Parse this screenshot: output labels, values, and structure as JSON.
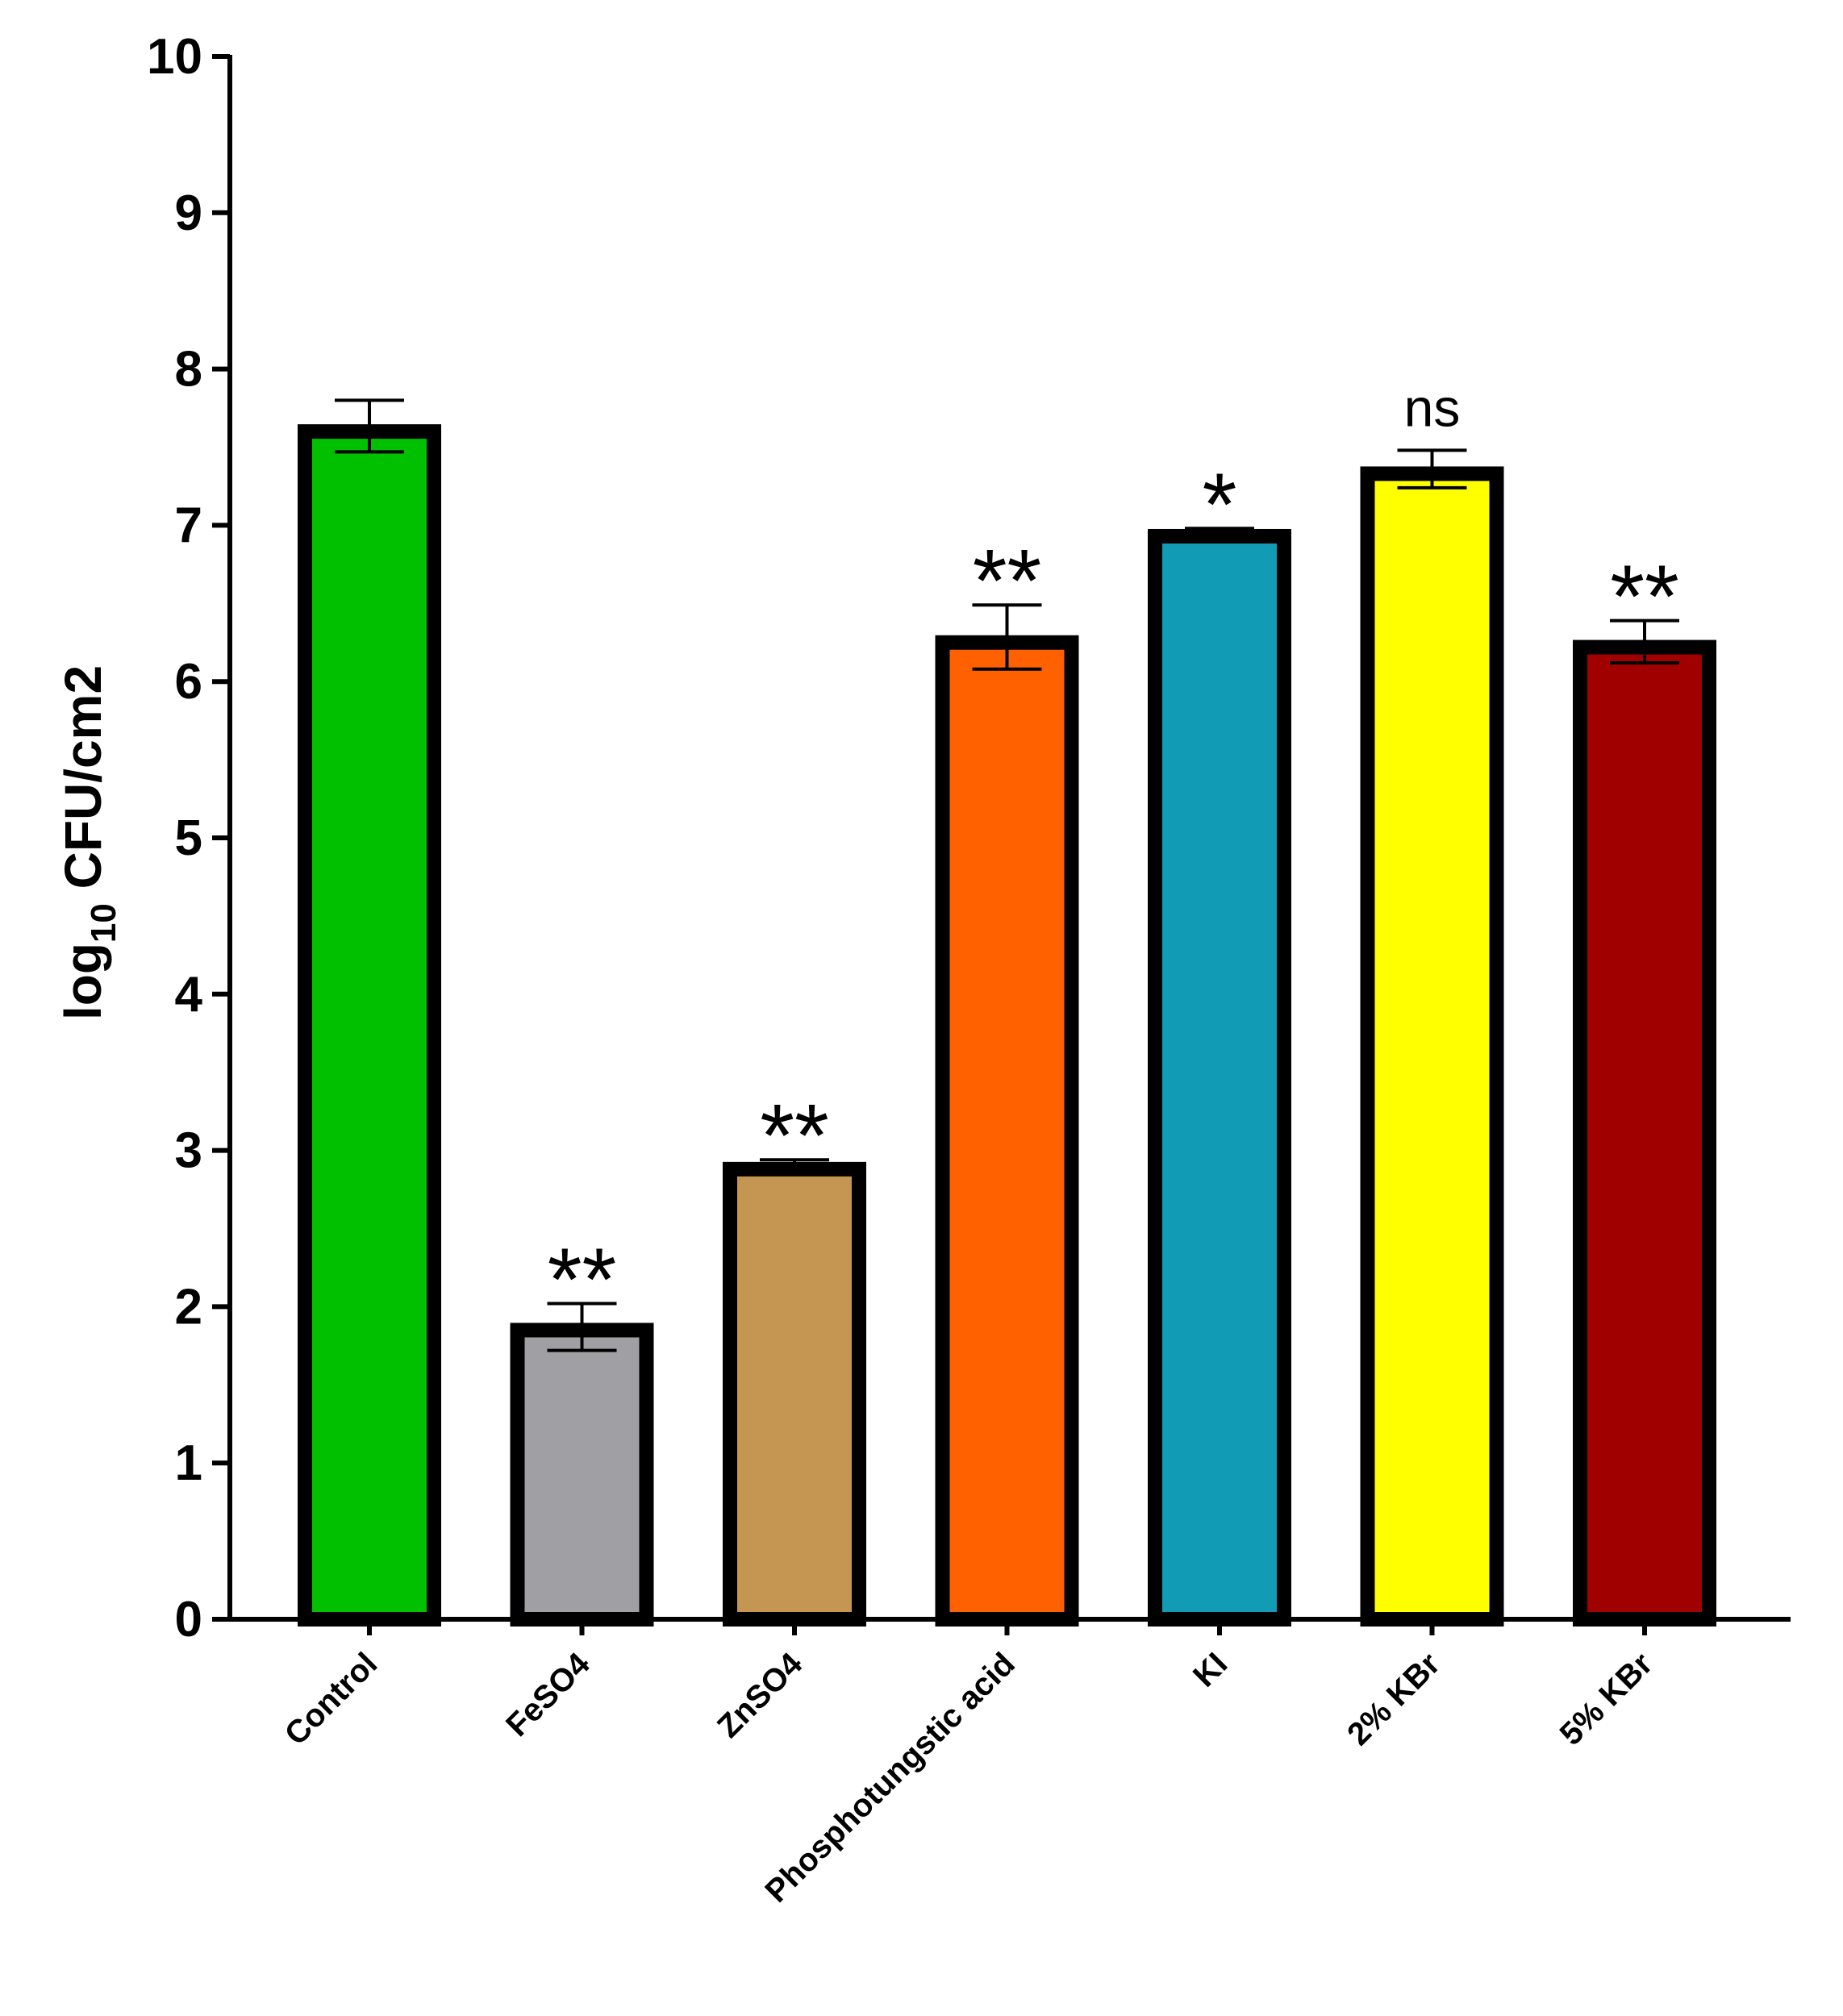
{
  "chart_data": {
    "type": "bar",
    "title": "",
    "xlabel": "",
    "ylabel": {
      "prefix": "log",
      "subscript": "10",
      "suffix": " CFU/cm2"
    },
    "ylim": [
      0,
      10
    ],
    "yticks": [
      "0",
      "1",
      "2",
      "3",
      "4",
      "5",
      "6",
      "7",
      "8",
      "9",
      "10"
    ],
    "grid": false,
    "legend": "none",
    "categories": [
      "Control",
      "FeSO4",
      "ZnSO4",
      "Phosphotungstic acid",
      "KI",
      "2% KBr",
      "5% KBr"
    ],
    "values": [
      7.6,
      1.85,
      2.88,
      6.25,
      6.93,
      7.33,
      6.22
    ],
    "error_upper": [
      0.2,
      0.17,
      0.06,
      0.24,
      0.05,
      0.15,
      0.17
    ],
    "error_lower": [
      0.13,
      0.13,
      0.0,
      0.17,
      0.0,
      0.09,
      0.1
    ],
    "significance": [
      "",
      "**",
      "**",
      "**",
      "*",
      "ns",
      "**"
    ],
    "colors": [
      "#00c000",
      "#a0a0a4",
      "#c49651",
      "#ff6000",
      "#119bb5",
      "#ffff00",
      "#a00000"
    ],
    "edge_color": "#000000"
  }
}
